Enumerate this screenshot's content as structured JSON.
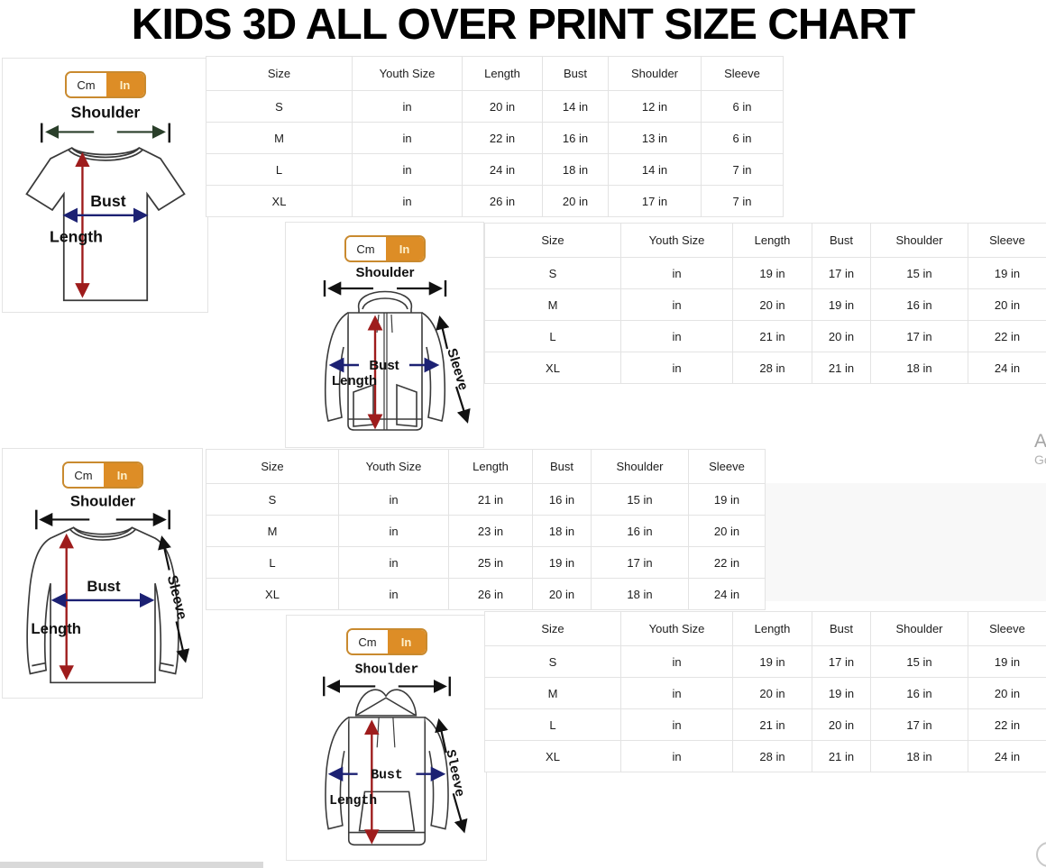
{
  "title": "KIDS 3D ALL OVER PRINT SIZE CHART",
  "unit_toggle": {
    "cm_label": "Cm",
    "in_label": "In",
    "selected_unit": "In"
  },
  "colors": {
    "accent_orange": "#DD8D26",
    "length_arrow_red": "#9E1C1C",
    "bust_arrow_navy": "#1C2173",
    "table_border_gray": "#E3E3E3"
  },
  "watermark": {
    "line1": "A",
    "line2": "Go"
  },
  "charts": [
    {
      "garment": "t-shirt",
      "type": "table",
      "diagram_labels": {
        "shoulder": "Shoulder",
        "bust": "Bust",
        "length": "Length"
      },
      "headers": [
        "Size",
        "Youth Size",
        "Length",
        "Bust",
        "Shoulder",
        "Sleeve"
      ],
      "rows": [
        [
          "S",
          "in",
          "20 in",
          "14 in",
          "12 in",
          "6 in"
        ],
        [
          "M",
          "in",
          "22 in",
          "16 in",
          "13 in",
          "6 in"
        ],
        [
          "L",
          "in",
          "24 in",
          "18 in",
          "14 in",
          "7 in"
        ],
        [
          "XL",
          "in",
          "26 in",
          "20 in",
          "17 in",
          "7 in"
        ]
      ]
    },
    {
      "garment": "zip-hoodie",
      "type": "table",
      "diagram_labels": {
        "shoulder": "Shoulder",
        "bust": "Bust",
        "length": "Length",
        "sleeve": "Sleeve"
      },
      "headers": [
        "Size",
        "Youth Size",
        "Length",
        "Bust",
        "Shoulder",
        "Sleeve"
      ],
      "rows": [
        [
          "S",
          "in",
          "19 in",
          "17 in",
          "15 in",
          "19 in"
        ],
        [
          "M",
          "in",
          "20 in",
          "19 in",
          "16 in",
          "20 in"
        ],
        [
          "L",
          "in",
          "21 in",
          "20 in",
          "17 in",
          "22 in"
        ],
        [
          "XL",
          "in",
          "28 in",
          "21 in",
          "18 in",
          "24 in"
        ]
      ]
    },
    {
      "garment": "long-sleeve-shirt",
      "type": "table",
      "diagram_labels": {
        "shoulder": "Shoulder",
        "bust": "Bust",
        "length": "Length",
        "sleeve": "Sleeve"
      },
      "headers": [
        "Size",
        "Youth Size",
        "Length",
        "Bust",
        "Shoulder",
        "Sleeve"
      ],
      "rows": [
        [
          "S",
          "in",
          "21 in",
          "16 in",
          "15 in",
          "19 in"
        ],
        [
          "M",
          "in",
          "23 in",
          "18 in",
          "16 in",
          "20 in"
        ],
        [
          "L",
          "in",
          "25 in",
          "19 in",
          "17 in",
          "22 in"
        ],
        [
          "XL",
          "in",
          "26 in",
          "20 in",
          "18 in",
          "24 in"
        ]
      ]
    },
    {
      "garment": "hoodie",
      "type": "table",
      "diagram_labels": {
        "shoulder": "Shoulder",
        "bust": "Bust",
        "length": "Length",
        "sleeve": "Sleeve"
      },
      "headers": [
        "Size",
        "Youth Size",
        "Length",
        "Bust",
        "Shoulder",
        "Sleeve"
      ],
      "rows": [
        [
          "S",
          "in",
          "19 in",
          "17 in",
          "15 in",
          "19 in"
        ],
        [
          "M",
          "in",
          "20 in",
          "19 in",
          "16 in",
          "20 in"
        ],
        [
          "L",
          "in",
          "21 in",
          "20 in",
          "17 in",
          "22 in"
        ],
        [
          "XL",
          "in",
          "28 in",
          "21 in",
          "18 in",
          "24 in"
        ]
      ]
    }
  ]
}
